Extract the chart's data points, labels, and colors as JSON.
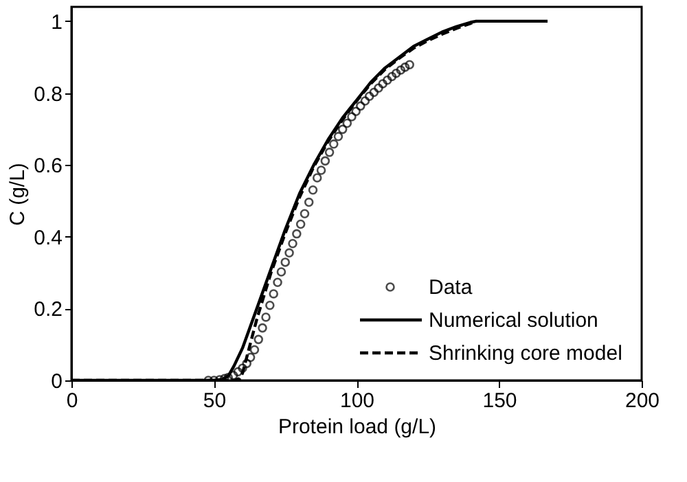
{
  "chart_data": {
    "type": "line",
    "xlabel": "Protein load (g/L)",
    "ylabel": "C (g/L)",
    "xlim": [
      0,
      200
    ],
    "xticks": [
      0,
      50,
      100,
      150,
      200
    ],
    "ylim": [
      0,
      1.04
    ],
    "yticks": [
      0,
      0.2,
      0.4,
      0.6,
      0.8,
      1
    ],
    "grid": false,
    "legend": "bottom right",
    "series": [
      {
        "name": "Data",
        "type": "scatter",
        "marker": "circle",
        "color": "#000000",
        "x": [
          48,
          50,
          52,
          53.7,
          55,
          56.8,
          58.4,
          60,
          61.5,
          62.8,
          64.2,
          65.6,
          67,
          68.2,
          69.6,
          70.9,
          72.3,
          73.6,
          75,
          76.4,
          77.6,
          79,
          80.4,
          81.8,
          83.3,
          84.7,
          86.2,
          87.6,
          89,
          90.5,
          92,
          93.6,
          95.1,
          96.7,
          98.3,
          99.8,
          101.4,
          103,
          104.5,
          106.1,
          107.7,
          109.2,
          110.8,
          112.4,
          113.9,
          115.5,
          117,
          118.6
        ],
        "values": [
          0,
          0,
          0.002,
          0.005,
          0.008,
          0.014,
          0.024,
          0.034,
          0.047,
          0.064,
          0.085,
          0.114,
          0.146,
          0.176,
          0.209,
          0.241,
          0.273,
          0.302,
          0.329,
          0.355,
          0.381,
          0.408,
          0.435,
          0.464,
          0.496,
          0.53,
          0.564,
          0.585,
          0.611,
          0.635,
          0.658,
          0.679,
          0.699,
          0.716,
          0.734,
          0.749,
          0.764,
          0.778,
          0.791,
          0.802,
          0.814,
          0.826,
          0.836,
          0.846,
          0.855,
          0.864,
          0.872,
          0.879
        ]
      },
      {
        "name": "Numerical solution",
        "line_style": "solid",
        "color": "#000000",
        "x": [
          0,
          50,
          53,
          55,
          57,
          60,
          65,
          70,
          75,
          80,
          85,
          90,
          95,
          100,
          105,
          110,
          115,
          120,
          125,
          130,
          135,
          140,
          142,
          167
        ],
        "values": [
          0,
          0,
          0.003,
          0.012,
          0.04,
          0.09,
          0.2,
          0.31,
          0.42,
          0.52,
          0.6,
          0.67,
          0.73,
          0.78,
          0.83,
          0.87,
          0.9,
          0.93,
          0.95,
          0.97,
          0.985,
          0.997,
          1,
          1
        ]
      },
      {
        "name": "Shrinking core model",
        "line_style": "dashed",
        "color": "#000000",
        "x": [
          0,
          57,
          59,
          60,
          62,
          65,
          70,
          75,
          80,
          85,
          90,
          95,
          100,
          105,
          110,
          115,
          120,
          125,
          130,
          135,
          140,
          142
        ],
        "values": [
          0,
          0,
          0.005,
          0.02,
          0.08,
          0.17,
          0.3,
          0.41,
          0.51,
          0.595,
          0.665,
          0.725,
          0.778,
          0.826,
          0.866,
          0.897,
          0.925,
          0.946,
          0.964,
          0.98,
          0.994,
          1
        ]
      }
    ]
  }
}
